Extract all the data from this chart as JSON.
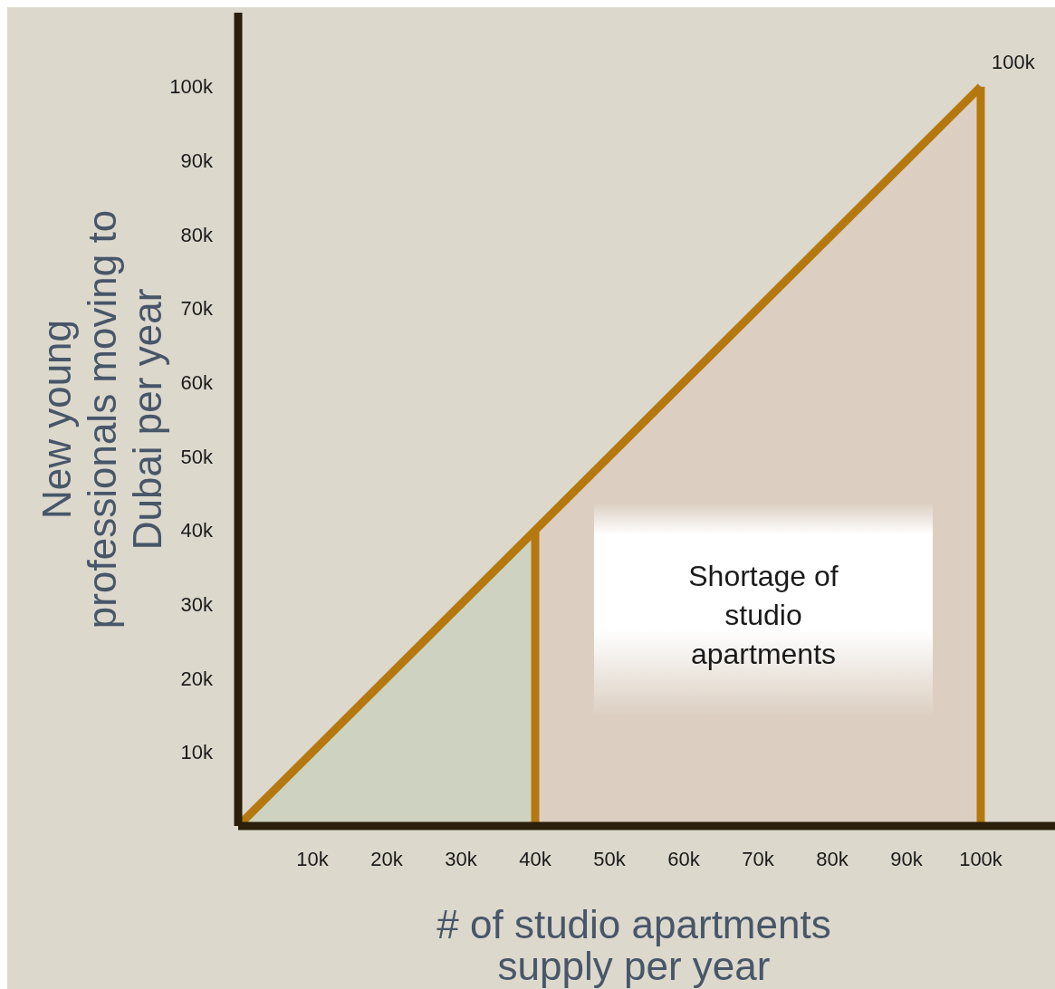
{
  "chart_data": {
    "type": "line",
    "xlabel": "# of studio apartments supply per year",
    "ylabel": "New young professionals moving to Dubai per year",
    "xlim": [
      0,
      110000
    ],
    "ylim": [
      0,
      110000
    ],
    "xticks": [
      {
        "value": 10000,
        "label": "10k"
      },
      {
        "value": 20000,
        "label": "20k"
      },
      {
        "value": 30000,
        "label": "30k"
      },
      {
        "value": 40000,
        "label": "40k"
      },
      {
        "value": 50000,
        "label": "50k"
      },
      {
        "value": 60000,
        "label": "60k"
      },
      {
        "value": 70000,
        "label": "70k"
      },
      {
        "value": 80000,
        "label": "80k"
      },
      {
        "value": 90000,
        "label": "90k"
      },
      {
        "value": 100000,
        "label": "100k"
      }
    ],
    "yticks": [
      {
        "value": 10000,
        "label": "10k"
      },
      {
        "value": 20000,
        "label": "20k"
      },
      {
        "value": 30000,
        "label": "30k"
      },
      {
        "value": 40000,
        "label": "40k"
      },
      {
        "value": 50000,
        "label": "50k"
      },
      {
        "value": 60000,
        "label": "60k"
      },
      {
        "value": 70000,
        "label": "70k"
      },
      {
        "value": 80000,
        "label": "80k"
      },
      {
        "value": 90000,
        "label": "90k"
      },
      {
        "value": 100000,
        "label": "100k"
      }
    ],
    "series": [
      {
        "type": "area",
        "color": "#cdd3c0",
        "x": [
          0,
          40000
        ],
        "values": [
          0,
          40000
        ]
      },
      {
        "type": "area",
        "color": "#dccfc2",
        "x": [
          40000,
          100000
        ],
        "values": [
          40000,
          100000
        ]
      },
      {
        "color": "#b5780f",
        "x": [
          0,
          40000,
          100000
        ],
        "values": [
          0,
          40000,
          100000
        ]
      },
      {
        "color": "#b5780f",
        "x": [
          40000,
          40000
        ],
        "values": [
          0,
          40000
        ]
      },
      {
        "color": "#b5780f",
        "x": [
          100000,
          100000
        ],
        "values": [
          0,
          100000
        ]
      }
    ],
    "annotations": [
      "Shortage of studio apartments",
      {
        "text": "100k",
        "x": 100000,
        "y": 100000
      }
    ]
  }
}
